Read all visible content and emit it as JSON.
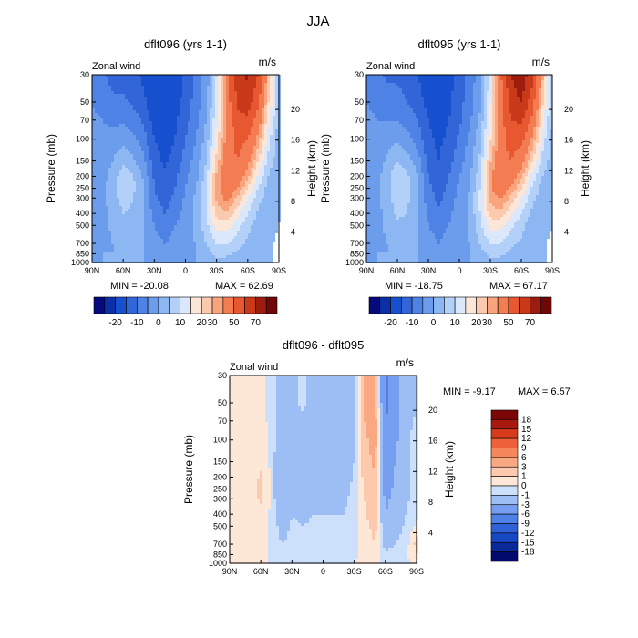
{
  "figure_title": "JJA",
  "color_scales": {
    "full": [
      "#050a7d",
      "#0a2fa7",
      "#1650cf",
      "#3266d8",
      "#4e82e4",
      "#6c9ded",
      "#8db7f3",
      "#b3d1f8",
      "#dbe8fb",
      "#fbe6d8",
      "#fbc9ad",
      "#f9a47c",
      "#f47c53",
      "#e85830",
      "#c93a1b",
      "#9c1c0f",
      "#6e0808"
    ],
    "diff": [
      "#030a6e",
      "#0a2a9a",
      "#1648c4",
      "#2e62d6",
      "#4f80e6",
      "#759ef0",
      "#9dbdf5",
      "#cde0fb",
      "#fde7d7",
      "#fcc9ad",
      "#faa882",
      "#f6875b",
      "#ee6038",
      "#d83a1c",
      "#a81a0e",
      "#7a0606"
    ]
  },
  "chart_data": [
    {
      "type": "heatmap",
      "id": "dflt096",
      "title": "dflt096 (yrs 1-1)",
      "left_label": "Zonal wind",
      "units": "m/s",
      "xlabel": "",
      "ylabel": "Pressure (mb)",
      "y2label": "Height (km)",
      "xticks": [
        "90N",
        "60N",
        "30N",
        "0",
        "30S",
        "60S",
        "90S"
      ],
      "yticks": [
        "30",
        "50",
        "70",
        "100",
        "150",
        "200",
        "250",
        "300",
        "400",
        "500",
        "700",
        "850",
        "1000"
      ],
      "y2ticks": [
        "20",
        "16",
        "12",
        "8",
        "4"
      ],
      "min_label": "MIN = -20.08",
      "max_label": "MAX = 62.69",
      "levels": [
        "-20",
        "-10",
        "0",
        "10",
        "20",
        "30",
        "50",
        "70"
      ],
      "x": [
        -90,
        -80,
        -70,
        -60,
        -50,
        -40,
        -30,
        -20,
        -10,
        0,
        10,
        20,
        30,
        40,
        50,
        60,
        70,
        80,
        90
      ],
      "p": [
        30,
        50,
        70,
        100,
        150,
        200,
        250,
        300,
        400,
        500,
        700,
        850,
        1000
      ],
      "values": [
        [
          -6,
          -9,
          -12,
          -12,
          -14,
          -16,
          -20,
          -20,
          -18,
          -14,
          -9,
          -3,
          10,
          35,
          55,
          62,
          50,
          25,
          5
        ],
        [
          -5,
          -7,
          -9,
          -9,
          -11,
          -14,
          -19,
          -19,
          -17,
          -13,
          -8,
          -2,
          12,
          35,
          52,
          56,
          42,
          20,
          4
        ],
        [
          -4,
          -5,
          -6,
          -6,
          -8,
          -11,
          -17,
          -18,
          -16,
          -12,
          -7,
          0,
          14,
          33,
          47,
          48,
          35,
          16,
          3
        ],
        [
          -4,
          -4,
          -3,
          -2,
          -4,
          -8,
          -15,
          -17,
          -15,
          -10,
          -5,
          2,
          17,
          33,
          43,
          40,
          28,
          12,
          2
        ],
        [
          -4,
          -3,
          0,
          4,
          1,
          -4,
          -13,
          -16,
          -13,
          -8,
          -3,
          5,
          22,
          36,
          40,
          33,
          20,
          8,
          1
        ],
        [
          -4,
          -2,
          2,
          8,
          5,
          -1,
          -11,
          -14,
          -11,
          -6,
          -2,
          7,
          26,
          38,
          36,
          26,
          14,
          5,
          0
        ],
        [
          -4,
          -2,
          3,
          8,
          6,
          0,
          -10,
          -13,
          -10,
          -5,
          0,
          9,
          27,
          36,
          30,
          20,
          10,
          3,
          0
        ],
        [
          -4,
          -2,
          3,
          7,
          5,
          0,
          -9,
          -12,
          -9,
          -4,
          1,
          10,
          26,
          32,
          24,
          15,
          7,
          2,
          0
        ],
        [
          -4,
          -2,
          2,
          5,
          4,
          0,
          -7,
          -10,
          -7,
          -3,
          1,
          10,
          22,
          24,
          17,
          10,
          4,
          0,
          0
        ],
        [
          -3,
          -2,
          1,
          3,
          3,
          0,
          -5,
          -8,
          -5,
          -2,
          1,
          8,
          17,
          18,
          12,
          7,
          2,
          0,
          0
        ],
        [
          -2,
          -1,
          0,
          2,
          2,
          0,
          -3,
          -5,
          -3,
          -1,
          0,
          5,
          10,
          10,
          7,
          4,
          1,
          0,
          0
        ],
        [
          -1,
          0,
          0,
          1,
          1,
          0,
          -2,
          -3,
          -2,
          -1,
          0,
          3,
          6,
          6,
          4,
          2,
          0,
          0,
          0
        ],
        [
          0,
          0,
          0,
          0,
          0,
          0,
          -1,
          -1,
          -1,
          0,
          0,
          1,
          3,
          3,
          2,
          1,
          0,
          0,
          0
        ]
      ]
    },
    {
      "type": "heatmap",
      "id": "dflt095",
      "title": "dflt095 (yrs 1-1)",
      "left_label": "Zonal wind",
      "units": "m/s",
      "xlabel": "",
      "ylabel": "Pressure (mb)",
      "y2label": "Height (km)",
      "xticks": [
        "90N",
        "60N",
        "30N",
        "0",
        "30S",
        "60S",
        "90S"
      ],
      "yticks": [
        "30",
        "50",
        "70",
        "100",
        "150",
        "200",
        "250",
        "300",
        "400",
        "500",
        "700",
        "850",
        "1000"
      ],
      "y2ticks": [
        "20",
        "16",
        "12",
        "8",
        "4"
      ],
      "min_label": "MIN = -18.75",
      "max_label": "MAX = 67.17",
      "levels": [
        "-20",
        "-10",
        "0",
        "10",
        "20",
        "30",
        "50",
        "70"
      ],
      "x": [
        -90,
        -80,
        -70,
        -60,
        -50,
        -40,
        -30,
        -20,
        -10,
        0,
        10,
        20,
        30,
        40,
        50,
        60,
        70,
        80,
        90
      ],
      "p": [
        30,
        50,
        70,
        100,
        150,
        200,
        250,
        300,
        400,
        500,
        700,
        850,
        1000
      ],
      "values": [
        [
          -6,
          -8,
          -11,
          -11,
          -13,
          -15,
          -18,
          -19,
          -17,
          -13,
          -8,
          -2,
          12,
          38,
          60,
          67,
          55,
          28,
          6
        ],
        [
          -5,
          -6,
          -8,
          -8,
          -10,
          -13,
          -17,
          -18,
          -16,
          -12,
          -7,
          -1,
          14,
          37,
          55,
          60,
          46,
          22,
          5
        ],
        [
          -4,
          -5,
          -5,
          -5,
          -7,
          -10,
          -15,
          -17,
          -15,
          -11,
          -6,
          1,
          16,
          35,
          50,
          52,
          38,
          18,
          4
        ],
        [
          -4,
          -4,
          -2,
          -1,
          -3,
          -7,
          -14,
          -16,
          -14,
          -9,
          -4,
          3,
          19,
          35,
          45,
          43,
          30,
          13,
          3
        ],
        [
          -4,
          -3,
          1,
          5,
          2,
          -3,
          -12,
          -15,
          -12,
          -7,
          -2,
          6,
          24,
          37,
          40,
          34,
          21,
          9,
          2
        ],
        [
          -4,
          -2,
          3,
          9,
          6,
          0,
          -10,
          -13,
          -10,
          -5,
          -1,
          8,
          28,
          38,
          35,
          26,
          14,
          5,
          1
        ],
        [
          -4,
          -2,
          3,
          9,
          7,
          0,
          -9,
          -12,
          -9,
          -4,
          0,
          10,
          29,
          35,
          29,
          20,
          10,
          3,
          0
        ],
        [
          -4,
          -2,
          3,
          8,
          6,
          0,
          -8,
          -11,
          -8,
          -3,
          1,
          11,
          27,
          31,
          23,
          15,
          7,
          2,
          0
        ],
        [
          -4,
          -2,
          2,
          6,
          5,
          0,
          -6,
          -9,
          -6,
          -2,
          1,
          10,
          22,
          23,
          16,
          10,
          4,
          1,
          0
        ],
        [
          -3,
          -2,
          1,
          4,
          3,
          0,
          -5,
          -7,
          -5,
          -2,
          1,
          8,
          17,
          17,
          11,
          7,
          2,
          0,
          0
        ],
        [
          -2,
          -1,
          0,
          2,
          2,
          0,
          -3,
          -5,
          -3,
          -1,
          0,
          5,
          10,
          10,
          6,
          4,
          1,
          0,
          0
        ],
        [
          -1,
          0,
          0,
          1,
          1,
          0,
          -2,
          -3,
          -2,
          -1,
          0,
          3,
          6,
          6,
          4,
          2,
          0,
          0,
          0
        ],
        [
          0,
          0,
          0,
          0,
          0,
          0,
          -1,
          -1,
          -1,
          0,
          0,
          1,
          3,
          3,
          2,
          1,
          0,
          0,
          0
        ]
      ]
    },
    {
      "type": "heatmap",
      "id": "diff",
      "title": "dflt096 - dflt095",
      "left_label": "Zonal wind",
      "units": "m/s",
      "xlabel": "",
      "ylabel": "Pressure (mb)",
      "y2label": "Height (km)",
      "xticks": [
        "90N",
        "60N",
        "30N",
        "0",
        "30S",
        "60S",
        "90S"
      ],
      "yticks": [
        "30",
        "50",
        "70",
        "100",
        "150",
        "200",
        "250",
        "300",
        "400",
        "500",
        "700",
        "850",
        "1000"
      ],
      "y2ticks": [
        "20",
        "16",
        "12",
        "8",
        "4"
      ],
      "min_label": "MIN = -9.17",
      "max_label": "MAX = 6.57",
      "levels": [
        "18",
        "15",
        "12",
        "9",
        "6",
        "3",
        "1",
        "0",
        "-1",
        "-3",
        "-6",
        "-9",
        "-12",
        "-15",
        "-18"
      ],
      "x": [
        -90,
        -80,
        -70,
        -60,
        -50,
        -40,
        -30,
        -20,
        -10,
        0,
        10,
        20,
        30,
        40,
        50,
        60,
        70,
        80,
        90
      ],
      "p": [
        30,
        50,
        70,
        100,
        150,
        200,
        250,
        300,
        400,
        500,
        700,
        850,
        1000
      ],
      "values": [
        [
          0.5,
          0.4,
          0.3,
          0.4,
          -0.5,
          -1.5,
          -1.2,
          -0.8,
          -1.5,
          -1.2,
          -1.5,
          -2,
          -2.5,
          4,
          3,
          -7,
          -4,
          -1.5,
          -1
        ],
        [
          0.5,
          0.5,
          0.4,
          0.5,
          -0.5,
          -1.5,
          -1.3,
          -0.8,
          -1.5,
          -1.2,
          -1.5,
          -2,
          -2,
          3.5,
          3.5,
          -7,
          -4,
          -1.5,
          -1
        ],
        [
          0.5,
          0.5,
          0.5,
          0.5,
          -0.4,
          -1.4,
          -1.5,
          -1.2,
          -1.4,
          -1.3,
          -1.5,
          -2,
          -1.5,
          3,
          4,
          -6,
          -3.5,
          -1.5,
          -0.8
        ],
        [
          0.4,
          0.6,
          0.5,
          0.6,
          -0.3,
          -2,
          -1.4,
          -1.3,
          -1.3,
          -1.3,
          -1.5,
          -2,
          -1,
          2.5,
          4,
          -5.5,
          -3.5,
          -1.2,
          -0.5
        ],
        [
          0.3,
          0.6,
          0.5,
          0.7,
          -0.2,
          -2.8,
          -1.3,
          -1.5,
          -1.2,
          -1.3,
          -1.4,
          -2,
          -1,
          2,
          3.5,
          -5,
          -3,
          -1.2,
          -0.5
        ],
        [
          0.3,
          0.5,
          0.3,
          1.2,
          -0.2,
          -3,
          -1.4,
          -1.6,
          -1.4,
          -1.3,
          -1.4,
          -1.8,
          -0.8,
          1.5,
          3,
          -4.5,
          -2.5,
          -1.3,
          -0.5
        ],
        [
          0.2,
          0.5,
          0.3,
          1.3,
          -0.2,
          -2.8,
          -1.3,
          -1.5,
          -1.3,
          -1.2,
          -1.3,
          -1.5,
          -0.6,
          1.2,
          2.5,
          -4,
          -2.5,
          -1.3,
          -0.5
        ],
        [
          0.2,
          0.4,
          0.3,
          1.2,
          -0.2,
          -2.5,
          -1.2,
          -1.4,
          -1.2,
          -1.1,
          -1.2,
          -1.3,
          -0.5,
          1,
          2.2,
          -3.5,
          -2.2,
          -1.2,
          -0.5
        ],
        [
          0.2,
          0.3,
          0.3,
          0.8,
          -0.2,
          -2,
          -1,
          -1.2,
          -1,
          -1,
          -1,
          -1,
          -0.4,
          0.8,
          2,
          -3,
          -2,
          -1,
          -0.4
        ],
        [
          0.2,
          0.3,
          0.3,
          0.5,
          -0.2,
          -1.5,
          -0.9,
          -1,
          -0.9,
          -0.8,
          -0.9,
          -0.8,
          -0.3,
          0.5,
          1.5,
          -2.5,
          -1.5,
          -0.8,
          0.3
        ],
        [
          0.1,
          0.2,
          0.2,
          0.3,
          -0.1,
          -1,
          -0.7,
          -0.8,
          -0.7,
          -0.6,
          -0.6,
          -0.5,
          -0.2,
          0.4,
          1,
          -1.5,
          -1,
          -0.5,
          1.5
        ],
        [
          0.1,
          0.1,
          0.1,
          0.2,
          -0.1,
          -0.5,
          -0.4,
          -0.5,
          -0.4,
          -0.3,
          -0.3,
          -0.3,
          -0.1,
          0.2,
          0.5,
          -0.8,
          -0.5,
          -0.3,
          1
        ],
        [
          0,
          0,
          0,
          0,
          0,
          -0.2,
          -0.2,
          -0.2,
          -0.2,
          -0.1,
          -0.1,
          -0.1,
          0,
          0.1,
          0.3,
          -0.3,
          -0.2,
          -0.1,
          0.2
        ]
      ]
    }
  ]
}
